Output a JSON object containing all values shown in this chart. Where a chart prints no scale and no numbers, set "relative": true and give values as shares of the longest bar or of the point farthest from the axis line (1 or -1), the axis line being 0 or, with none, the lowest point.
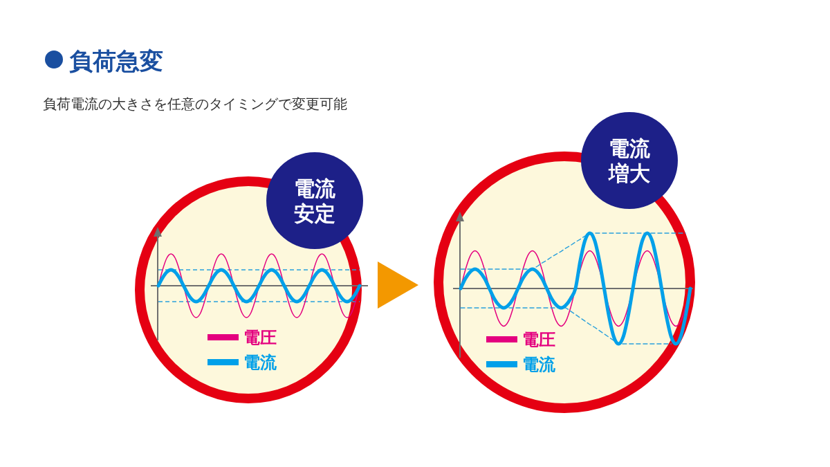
{
  "chart_data": [
    {
      "type": "line",
      "title": "負荷急変",
      "subtitle": "負荷電流の大きさを任意のタイミングで変更可能",
      "relative": true,
      "legend": "bottom left",
      "annotations": [
        "電流",
        "安定"
      ],
      "categories": [
        null,
        null,
        null,
        null,
        null,
        null,
        null,
        null,
        null,
        null,
        null,
        null,
        null,
        null,
        null,
        null,
        null,
        null,
        null,
        null,
        null,
        null,
        null,
        null,
        null,
        null,
        null,
        null,
        null,
        null,
        null,
        null,
        null,
        null,
        null,
        null,
        null,
        null,
        null,
        null,
        null,
        null,
        null,
        null,
        null,
        null,
        null,
        null,
        null
      ],
      "ref_lines": [
        {
          "axis": "y",
          "value": 0.5,
          "color": "#29a0dc",
          "line_style": "dashed"
        },
        {
          "axis": "y",
          "value": -0.5,
          "color": "#29a0dc",
          "line_style": "dashed"
        }
      ],
      "series": [
        {
          "name": "電圧",
          "color": "#e4007f",
          "values": [
            0,
            0.5,
            0.87,
            1,
            0.87,
            0.5,
            0,
            -0.5,
            -0.87,
            -1,
            -0.87,
            -0.5,
            0,
            0.5,
            0.87,
            1,
            0.87,
            0.5,
            0,
            -0.5,
            -0.87,
            -1,
            -0.87,
            -0.5,
            0,
            0.5,
            0.87,
            1,
            0.87,
            0.5,
            0,
            -0.5,
            -0.87,
            -1,
            -0.87,
            -0.5,
            0,
            0.5,
            0.87,
            1,
            0.87,
            0.5,
            0,
            -0.5,
            -0.87,
            -1,
            -0.87,
            -0.5,
            0
          ]
        },
        {
          "name": "電流",
          "color": "#00a0e9",
          "values": [
            0,
            0.25,
            0.43,
            0.5,
            0.43,
            0.25,
            0,
            -0.25,
            -0.43,
            -0.5,
            -0.43,
            -0.25,
            0,
            0.25,
            0.43,
            0.5,
            0.43,
            0.25,
            0,
            -0.25,
            -0.43,
            -0.5,
            -0.43,
            -0.25,
            0,
            0.25,
            0.43,
            0.5,
            0.43,
            0.25,
            0,
            -0.25,
            -0.43,
            -0.5,
            -0.43,
            -0.25,
            0,
            0.25,
            0.43,
            0.5,
            0.43,
            0.25,
            0,
            -0.25,
            -0.43,
            -0.5,
            -0.43,
            -0.25,
            0
          ]
        }
      ]
    },
    {
      "type": "line",
      "relative": true,
      "legend": "bottom left",
      "annotations": [
        "電流",
        "増大"
      ],
      "categories": [
        null,
        null,
        null,
        null,
        null,
        null,
        null,
        null,
        null,
        null,
        null,
        null,
        null,
        null,
        null,
        null,
        null,
        null,
        null,
        null,
        null,
        null,
        null,
        null,
        null,
        null,
        null,
        null,
        null,
        null,
        null,
        null,
        null,
        null,
        null,
        null,
        null,
        null,
        null,
        null,
        null,
        null,
        null,
        null,
        null,
        null,
        null,
        null,
        null
      ],
      "series": [
        {
          "name": "電圧",
          "color": "#e4007f",
          "values": [
            0,
            0.34,
            0.59,
            0.68,
            0.59,
            0.34,
            0,
            -0.34,
            -0.59,
            -0.68,
            -0.59,
            -0.34,
            0,
            0.34,
            0.59,
            0.68,
            0.59,
            0.34,
            0,
            -0.34,
            -0.59,
            -0.68,
            -0.59,
            -0.34,
            0,
            0.34,
            0.59,
            0.68,
            0.59,
            0.34,
            0,
            -0.34,
            -0.59,
            -0.68,
            -0.59,
            -0.34,
            0,
            0.34,
            0.59,
            0.68,
            0.59,
            0.34,
            0,
            -0.34,
            -0.59,
            -0.68,
            -0.59,
            -0.34,
            0
          ]
        },
        {
          "color": "#29a0dc",
          "line_style": "dashed",
          "values": [
            0.35,
            0.35,
            0.35,
            0.35,
            0.35,
            0.35,
            0.35,
            0.35,
            0.35,
            0.35,
            0.35,
            0.35,
            0.35,
            0.35,
            0.35,
            0.35,
            0.4,
            0.46,
            0.51,
            0.57,
            0.62,
            0.67,
            0.73,
            0.78,
            0.84,
            0.89,
            0.95,
            1,
            1,
            1,
            1,
            1,
            1,
            1,
            1,
            1,
            1,
            1,
            1,
            1,
            1,
            1,
            1,
            1,
            1,
            1,
            1,
            1,
            null
          ]
        },
        {
          "color": "#29a0dc",
          "line_style": "dashed",
          "values": [
            -0.35,
            -0.35,
            -0.35,
            -0.35,
            -0.35,
            -0.35,
            -0.35,
            -0.35,
            -0.35,
            -0.35,
            -0.35,
            -0.35,
            -0.35,
            -0.35,
            -0.35,
            -0.35,
            -0.35,
            -0.35,
            -0.35,
            -0.35,
            -0.35,
            -0.35,
            -0.35,
            -0.41,
            -0.47,
            -0.53,
            -0.59,
            -0.65,
            -0.7,
            -0.76,
            -0.82,
            -0.88,
            -0.94,
            -1,
            -1,
            -1,
            -1,
            -1,
            -1,
            -1,
            -1,
            -1,
            -1,
            -1,
            -1,
            null,
            null,
            null,
            null
          ]
        },
        {
          "name": "電流",
          "color": "#00a0e9",
          "values": [
            0,
            0.18,
            0.3,
            0.35,
            0.3,
            0.18,
            0,
            -0.18,
            -0.3,
            -0.35,
            -0.3,
            -0.18,
            0,
            0.18,
            0.3,
            0.35,
            0.3,
            0.18,
            0,
            -0.18,
            -0.3,
            -0.35,
            -0.3,
            -0.18,
            0,
            0.5,
            0.87,
            1,
            0.87,
            0.5,
            0,
            -0.5,
            -0.87,
            -1,
            -0.87,
            -0.5,
            0,
            0.5,
            0.87,
            1,
            0.87,
            0.5,
            0,
            -0.5,
            -0.87,
            -1,
            -0.87,
            -0.5,
            0
          ]
        }
      ]
    }
  ]
}
